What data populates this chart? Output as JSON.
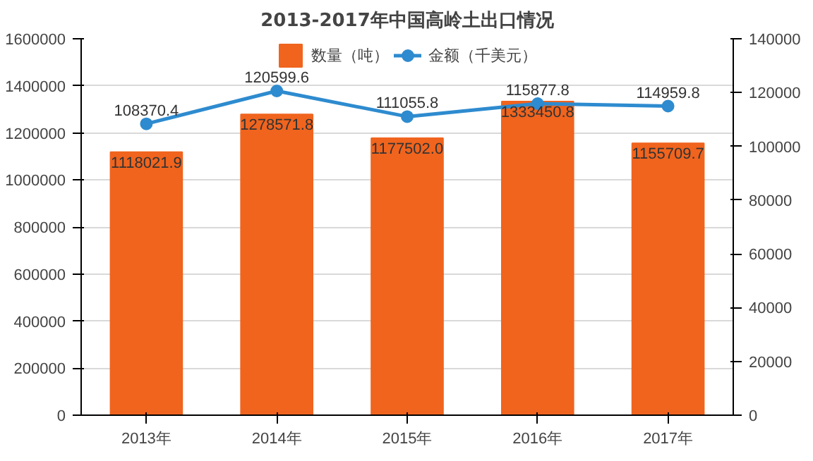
{
  "chart_data": {
    "type": "bar",
    "title": "2013-2017年中国高岭土出口情况",
    "categories": [
      "2013年",
      "2014年",
      "2015年",
      "2016年",
      "2017年"
    ],
    "series": [
      {
        "name": "数量（吨）",
        "color": "#f0641e",
        "values": [
          1118021.9,
          1278571.8,
          1177502,
          1333450.8,
          1155709.7
        ],
        "value_labels": [
          "1118021.9",
          "1278571.8",
          "1177502.0",
          "1333450.8",
          "1155709.7"
        ]
      },
      {
        "name": "金额（千美元）",
        "type": "line",
        "axis": "y2",
        "color": "#2e8bcf",
        "marker": "circle",
        "values": [
          108370.4,
          120599.6,
          111055.8,
          115877.8,
          114959.8
        ]
      }
    ],
    "ylim": [
      0,
      1600000
    ],
    "yticks": [
      0,
      200000,
      400000,
      600000,
      800000,
      1000000,
      1200000,
      1400000,
      1600000
    ],
    "y2lim": [
      0,
      140000
    ],
    "y2ticks": [
      0,
      20000,
      40000,
      60000,
      80000,
      100000,
      120000,
      140000
    ],
    "grid": "y",
    "legend": "top",
    "data_labels": true
  }
}
